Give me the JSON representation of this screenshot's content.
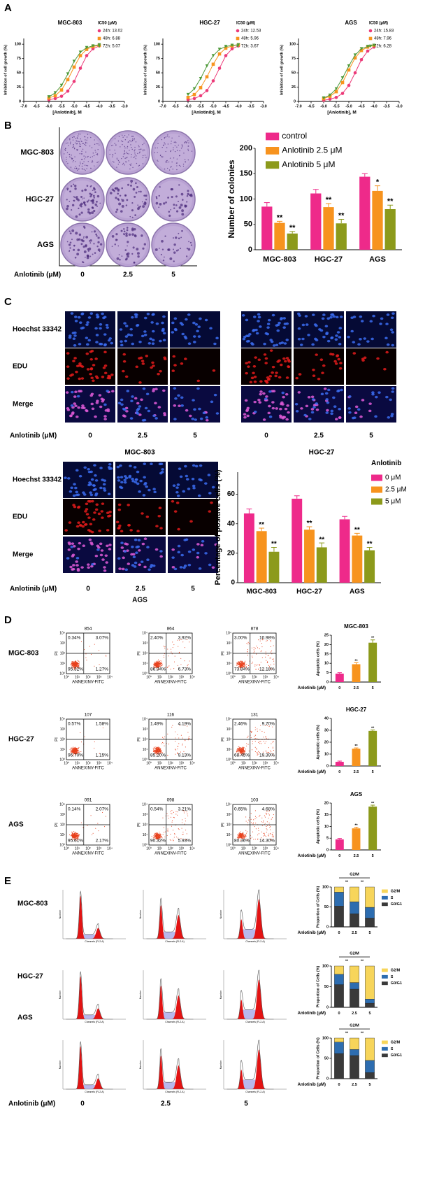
{
  "panel_labels": [
    "A",
    "B",
    "C",
    "D",
    "E"
  ],
  "chart_data": [
    {
      "type": "line",
      "title": "MGC-803",
      "legend_title": "IC50 (μM)",
      "x_label": "[Anlotinib], M",
      "y_label": "Inhibition of cell growth (%)",
      "x": [
        -6,
        -5.75,
        -5.5,
        -5.25,
        -5,
        -4.75,
        -4.5,
        -4.25,
        -4
      ],
      "series": [
        {
          "name": "24h: 13.02",
          "color": "#ec3a78",
          "values": [
            3,
            5,
            9,
            18,
            35,
            58,
            80,
            92,
            97
          ]
        },
        {
          "name": "48h: 6.88",
          "color": "#f7941d",
          "values": [
            6,
            10,
            20,
            38,
            60,
            80,
            91,
            96,
            98
          ]
        },
        {
          "name": "72h: 5.07",
          "color": "#4f9a3a",
          "values": [
            8,
            15,
            28,
            48,
            70,
            86,
            94,
            97,
            99
          ]
        }
      ],
      "xlim": [
        -7,
        -3
      ],
      "xticks": [
        {
          "value": -7,
          "label": "-7.0"
        },
        -6.5,
        {
          "value": -6,
          "label": "-6.0"
        },
        -5.5,
        {
          "value": -5,
          "label": "-5.0"
        },
        -4.5,
        {
          "value": -4,
          "label": "-4.0"
        },
        -3.5,
        {
          "value": -3,
          "label": "-3.0"
        }
      ],
      "ylim": [
        0,
        110
      ],
      "yticks": [
        0,
        25,
        50,
        75,
        100
      ]
    },
    {
      "type": "line",
      "title": "HGC-27",
      "legend_title": "IC50 (μM)",
      "x_label": "[Anlotinib], M",
      "y_label": "Inhibition of cell growth (%)",
      "x": [
        -6,
        -5.75,
        -5.5,
        -5.25,
        -5,
        -4.75,
        -4.5,
        -4.25,
        -4
      ],
      "series": [
        {
          "name": "24h: 12.53",
          "color": "#ec3a78",
          "values": [
            3,
            5,
            10,
            19,
            36,
            58,
            80,
            92,
            97
          ]
        },
        {
          "name": "48h: 5.96",
          "color": "#f7941d",
          "values": [
            7,
            12,
            24,
            43,
            65,
            83,
            93,
            97,
            99
          ]
        },
        {
          "name": "72h: 3.67",
          "color": "#4f9a3a",
          "values": [
            12,
            22,
            40,
            62,
            80,
            91,
            96,
            98,
            99
          ]
        }
      ],
      "xlim": [
        -7,
        -3
      ],
      "xticks": [
        {
          "value": -7,
          "label": "-7.0"
        },
        -6.5,
        {
          "value": -6,
          "label": "-6.0"
        },
        -5.5,
        {
          "value": -5,
          "label": "-5.0"
        },
        -4.5,
        {
          "value": -4,
          "label": "-4.0"
        },
        -3.5,
        {
          "value": -3,
          "label": "-3.0"
        }
      ],
      "ylim": [
        0,
        110
      ],
      "yticks": [
        0,
        25,
        50,
        75,
        100
      ]
    },
    {
      "type": "line",
      "title": "AGS",
      "legend_title": "IC50 (μM)",
      "x_label": "[Anlotinib], M",
      "y_label": "Inhibition of cell growth (%)",
      "x": [
        -6,
        -5.75,
        -5.5,
        -5.25,
        -5,
        -4.75,
        -4.5,
        -4.25,
        -4
      ],
      "series": [
        {
          "name": "24h: 15.83",
          "color": "#ec3a78",
          "values": [
            2,
            4,
            7,
            14,
            28,
            50,
            73,
            88,
            95
          ]
        },
        {
          "name": "48h: 7.96",
          "color": "#f7941d",
          "values": [
            5,
            9,
            17,
            33,
            55,
            76,
            89,
            95,
            98
          ]
        },
        {
          "name": "72h: 6.28",
          "color": "#4f9a3a",
          "values": [
            6,
            11,
            22,
            41,
            62,
            81,
            92,
            96,
            98
          ]
        }
      ],
      "xlim": [
        -7,
        -3
      ],
      "xticks": [
        {
          "value": -7,
          "label": "-7.0"
        },
        -6.5,
        {
          "value": -6,
          "label": "-6.0"
        },
        -5.5,
        {
          "value": -5,
          "label": "-5.0"
        },
        -4.5,
        {
          "value": -4,
          "label": "-4.0"
        },
        -3.5,
        {
          "value": -3,
          "label": "-3.0"
        }
      ],
      "ylim": [
        0,
        110
      ],
      "yticks": [
        0,
        25,
        50,
        75,
        100
      ]
    },
    {
      "type": "bar",
      "y_label": "Number of colonies",
      "categories": [
        "MGC-803",
        "HGC-27",
        "AGS"
      ],
      "legend": "upper left",
      "series": [
        {
          "name": "control",
          "color": "#ee2a8a",
          "values": [
            85,
            111,
            144
          ],
          "errors": [
            8,
            8,
            6
          ]
        },
        {
          "name": "Anlotinib 2.5 μM",
          "color": "#f7931e",
          "values": [
            53,
            84,
            116
          ],
          "errors": [
            3,
            7,
            10
          ],
          "sig": [
            "**",
            "**",
            "*"
          ]
        },
        {
          "name": "Anlotinib 5 μM",
          "color": "#8c9a1b",
          "values": [
            32,
            52,
            80
          ],
          "errors": [
            4,
            8,
            8
          ],
          "sig": [
            "**",
            "**",
            "**"
          ]
        }
      ],
      "ylim": [
        0,
        200
      ],
      "yticks": [
        0,
        50,
        100,
        150,
        200
      ]
    },
    {
      "type": "bar",
      "y_label": "Percentage of positive cells (%)",
      "categories": [
        "MGC-803",
        "HGC-27",
        "AGS"
      ],
      "legend": "upper right",
      "legend_title": "Anlotinib",
      "series": [
        {
          "name": "0 μM",
          "color": "#ee2a8a",
          "values": [
            47,
            57,
            43
          ],
          "errors": [
            3,
            2,
            2
          ]
        },
        {
          "name": "2.5 μM",
          "color": "#f7931e",
          "values": [
            35,
            36,
            32
          ],
          "errors": [
            2,
            2,
            1.5
          ],
          "sig": [
            "**",
            "**",
            "**"
          ]
        },
        {
          "name": "5 μM",
          "color": "#8c9a1b",
          "values": [
            21,
            24,
            22
          ],
          "errors": [
            3,
            3,
            2
          ],
          "sig": [
            "**",
            "**",
            "**"
          ]
        }
      ],
      "ylim": [
        0,
        75
      ],
      "yticks": [
        0,
        20,
        40,
        60
      ]
    },
    {
      "type": "bar",
      "title": "MGC-803",
      "y_label": "Apoptotic cells (%)",
      "x_label": "Anlotinib (μM)",
      "categories": [
        "0",
        "2.5",
        "5"
      ],
      "values": [
        4.5,
        9.5,
        21
      ],
      "errors": [
        0.5,
        0.8,
        1.5
      ],
      "colors": [
        "#ee2a8a",
        "#f7931e",
        "#8c9a1b"
      ],
      "sig": [
        null,
        "**",
        "**"
      ],
      "ylim": [
        0,
        25
      ],
      "yticks": [
        0,
        5,
        10,
        15,
        20,
        25
      ]
    },
    {
      "type": "bar",
      "title": "HGC-27",
      "y_label": "Apoptotic cells (%)",
      "x_label": "Anlotinib (μM)",
      "categories": [
        "0",
        "2.5",
        "5"
      ],
      "values": [
        3.5,
        14.5,
        29.5
      ],
      "errors": [
        0.6,
        0.7,
        0.8
      ],
      "colors": [
        "#ee2a8a",
        "#f7931e",
        "#8c9a1b"
      ],
      "sig": [
        null,
        "**",
        "**"
      ],
      "ylim": [
        0,
        40
      ],
      "yticks": [
        0,
        10,
        20,
        30,
        40
      ]
    },
    {
      "type": "bar",
      "title": "AGS",
      "y_label": "Apoptotic cells (%)",
      "x_label": "Anlotinib (μM)",
      "categories": [
        "0",
        "2.5",
        "5"
      ],
      "values": [
        4.5,
        9.2,
        18.5
      ],
      "errors": [
        0.4,
        0.5,
        0.6
      ],
      "colors": [
        "#ee2a8a",
        "#f7931e",
        "#8c9a1b"
      ],
      "sig": [
        null,
        "**",
        "**"
      ],
      "ylim": [
        0,
        20
      ],
      "yticks": [
        0,
        5,
        10,
        15,
        20
      ]
    },
    {
      "type": "stacked_bar",
      "y_label": "Proportion of Cells (%)",
      "x_label": "Anlotinib (μM)",
      "categories": [
        "0",
        "2.5",
        "5"
      ],
      "legend": "right",
      "bracket_label": "G2/M",
      "sig": [
        null,
        "**",
        "**"
      ],
      "series": [
        {
          "name": "G0/G1",
          "color": "#3a3a3a",
          "values": [
            52,
            33,
            22
          ]
        },
        {
          "name": "S",
          "color": "#2d6db0",
          "values": [
            35,
            30,
            27
          ]
        },
        {
          "name": "G2/M",
          "color": "#f7d55a",
          "values": [
            13,
            37,
            51
          ]
        }
      ],
      "ylim": [
        0,
        100
      ],
      "yticks": [
        0,
        50,
        100
      ]
    },
    {
      "type": "stacked_bar",
      "y_label": "Proportion of Cells (%)",
      "x_label": "Anlotinib (μM)",
      "categories": [
        "0",
        "2.5",
        "5"
      ],
      "legend": "right",
      "bracket_label": "G2/M",
      "sig": [
        null,
        "**",
        "**"
      ],
      "series": [
        {
          "name": "G0/G1",
          "color": "#3a3a3a",
          "values": [
            55,
            44,
            10
          ]
        },
        {
          "name": "S",
          "color": "#2d6db0",
          "values": [
            25,
            16,
            10
          ]
        },
        {
          "name": "G2/M",
          "color": "#f7d55a",
          "values": [
            20,
            40,
            80
          ]
        }
      ],
      "ylim": [
        0,
        100
      ],
      "yticks": [
        0,
        50,
        100
      ]
    },
    {
      "type": "stacked_bar",
      "y_label": "Proportion of Cells (%)",
      "x_label": "Anlotinib (μM)",
      "categories": [
        "0",
        "2.5",
        "5"
      ],
      "legend": "right",
      "bracket_label": "G2/M",
      "sig": [
        null,
        "**",
        "**"
      ],
      "series": [
        {
          "name": "G0/G1",
          "color": "#3a3a3a",
          "values": [
            62,
            57,
            15
          ]
        },
        {
          "name": "S",
          "color": "#2d6db0",
          "values": [
            28,
            15,
            30
          ]
        },
        {
          "name": "G2/M",
          "color": "#f7d55a",
          "values": [
            10,
            28,
            55
          ]
        }
      ],
      "ylim": [
        0,
        100
      ],
      "yticks": [
        0,
        50,
        100
      ]
    }
  ],
  "colony": {
    "rows": [
      "MGC-803",
      "HGC-27",
      "AGS"
    ],
    "dose_label": "Anlotinib (μM)",
    "doses": [
      "0",
      "2.5",
      "5"
    ]
  },
  "edu": {
    "stains": [
      "Hoechst 33342",
      "EDU",
      "Merge"
    ],
    "dose_label": "Anlotinib (μM)",
    "doses": [
      "0",
      "2.5",
      "5"
    ],
    "cell_lines": [
      "MGC-803",
      "HGC-27",
      "AGS"
    ]
  },
  "flow": {
    "rows": [
      "MGC-803",
      "HGC-27",
      "AGS"
    ],
    "x_label": "ANNEXINV-FITC",
    "y_label": "PI",
    "ticks": [
      "10⁰",
      "10¹",
      "10²",
      "10³",
      "10⁴"
    ],
    "plots": [
      [
        {
          "id": "854",
          "quadrants": [
            "0.34%",
            "3.07%",
            "95.32%",
            "1.27%"
          ]
        },
        {
          "id": "864",
          "quadrants": [
            "2.40%",
            "3.92%",
            "86.94%",
            "6.73%"
          ]
        },
        {
          "id": "878",
          "quadrants": [
            "3.00%",
            "10.98%",
            "73.84%",
            "12.18%"
          ]
        }
      ],
      [
        {
          "id": "107",
          "quadrants": [
            "0.57%",
            "1.58%",
            "96.70%",
            "1.15%"
          ]
        },
        {
          "id": "116",
          "quadrants": [
            "1.49%",
            "4.19%",
            "85.20%",
            "9.13%"
          ]
        },
        {
          "id": "131",
          "quadrants": [
            "2.46%",
            "9.70%",
            "68.45%",
            "19.39%"
          ]
        }
      ],
      [
        {
          "id": "091",
          "quadrants": [
            "0.14%",
            "2.07%",
            "95.61%",
            "2.17%"
          ]
        },
        {
          "id": "098",
          "quadrants": [
            "0.54%",
            "3.21%",
            "90.32%",
            "5.93%"
          ]
        },
        {
          "id": "103",
          "quadrants": [
            "0.65%",
            "4.68%",
            "80.36%",
            "14.30%"
          ]
        }
      ]
    ]
  },
  "cycle": {
    "rows": [
      "MGC-803",
      "HGC-27",
      "AGS"
    ],
    "dose_label": "Anlotinib (μM)",
    "doses": [
      "0",
      "2.5",
      "5"
    ],
    "x_label": "Channels (FL2-A)",
    "y_label": "Number"
  }
}
